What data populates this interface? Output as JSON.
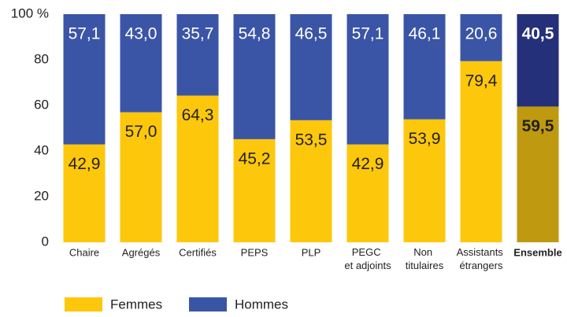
{
  "chart_data": {
    "type": "stacked_bar",
    "categories": [
      "Chaire",
      "Agrégés",
      "Certifiés",
      "PEPS",
      "PLP",
      "PEGC et adjoints",
      "Non titulaires",
      "Assistants étrangers",
      "Ensemble"
    ],
    "emphasis": [
      false,
      false,
      false,
      false,
      false,
      false,
      false,
      false,
      true
    ],
    "series": [
      {
        "name": "Femmes",
        "color": "#fdc70c",
        "colors": [
          "#fdc70c",
          "#fdc70c",
          "#fdc70c",
          "#fdc70c",
          "#fdc70c",
          "#fdc70c",
          "#fdc70c",
          "#fdc70c",
          "#bf9a10"
        ],
        "label_color": "#222222",
        "values": [
          42.9,
          57.0,
          64.3,
          45.2,
          53.5,
          42.9,
          53.9,
          79.4,
          59.5
        ],
        "value_labels": [
          "42,9",
          "57,0",
          "64,3",
          "45,2",
          "53,5",
          "42,9",
          "53,9",
          "79,4",
          "59,5"
        ]
      },
      {
        "name": "Hommes",
        "color": "#3b55a6",
        "colors": [
          "#3b55a6",
          "#3b55a6",
          "#3b55a6",
          "#3b55a6",
          "#3b55a6",
          "#3b55a6",
          "#3b55a6",
          "#3b55a6",
          "#25307a"
        ],
        "label_color": "#ffffff",
        "values": [
          57.1,
          43.0,
          35.7,
          54.8,
          46.5,
          57.1,
          46.1,
          20.6,
          40.5
        ],
        "value_labels": [
          "57,1",
          "43,0",
          "35,7",
          "54,8",
          "46,5",
          "57,1",
          "46,1",
          "20,6",
          "40,5"
        ]
      }
    ],
    "ylim": [
      0,
      100
    ],
    "yticks": [
      0,
      20,
      40,
      60,
      80,
      {
        "value": 100,
        "label": "100 %"
      }
    ],
    "legend": "bottom-left"
  }
}
